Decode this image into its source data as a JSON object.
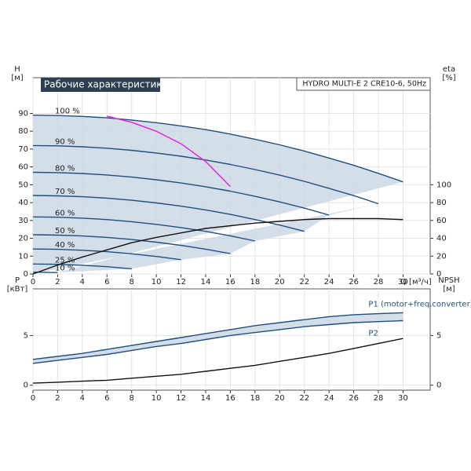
{
  "chart_data": [
    {
      "type": "line",
      "title": "Рабочие характеристики",
      "subtitle": "HYDRO MULTI-E 2 CRE10-6, 50Hz",
      "ylabel": "H",
      "ylabel_unit": "[м]",
      "y2label": "eta",
      "y2label_unit": "[%]",
      "xlabel": "Q [м³/ч]",
      "series_labels": "start",
      "grid": true,
      "xlim": [
        0,
        32.2
      ],
      "xticks": [
        0,
        2,
        4,
        6,
        8,
        10,
        12,
        14,
        16,
        18,
        20,
        22,
        24,
        26,
        28,
        30
      ],
      "ylim": [
        0,
        110
      ],
      "yticks": [
        0,
        10,
        20,
        30,
        40,
        50,
        60,
        70,
        80,
        90
      ],
      "y2lim": [
        0,
        220
      ],
      "y2ticks": [
        0,
        20,
        40,
        60,
        80,
        100
      ],
      "x": [
        0,
        2,
        4,
        6,
        8,
        10,
        12,
        14,
        16,
        18,
        20,
        22,
        24,
        26,
        28,
        30
      ],
      "series": [
        {
          "name": "100 %",
          "color": "#1f4f7f",
          "values": [
            89,
            88.8,
            88.3,
            87.5,
            86.3,
            84.8,
            83,
            80.9,
            78.4,
            75.5,
            72.4,
            68.9,
            65,
            60.9,
            56.4,
            51.6
          ]
        },
        {
          "name": "90 %",
          "color": "#1f4f7f",
          "values": [
            72,
            71.8,
            71.3,
            70.5,
            69.3,
            67.8,
            66,
            63.9,
            61.4,
            58.5,
            55.4,
            51.9,
            48,
            43.9,
            39.4,
            null
          ]
        },
        {
          "name": "80 %",
          "color": "#1f4f7f",
          "values": [
            57,
            56.8,
            56.3,
            55.5,
            54.3,
            52.8,
            51,
            48.9,
            46.4,
            43.5,
            40.4,
            36.9,
            33,
            null,
            null,
            null
          ]
        },
        {
          "name": "70 %",
          "color": "#1f4f7f",
          "values": [
            44,
            43.8,
            43.3,
            42.5,
            41.3,
            39.8,
            38,
            35.9,
            33.4,
            30.5,
            27.4,
            23.9,
            null,
            null,
            null,
            null
          ]
        },
        {
          "name": "60 %",
          "color": "#1f4f7f",
          "values": [
            32,
            31.8,
            31.3,
            30.5,
            29.3,
            27.8,
            26,
            23.9,
            21.4,
            18.5,
            null,
            null,
            null,
            null,
            null,
            null
          ]
        },
        {
          "name": "50 %",
          "color": "#1f4f7f",
          "values": [
            22,
            21.8,
            21.3,
            20.5,
            19.3,
            17.8,
            16,
            13.9,
            11.4,
            null,
            null,
            null,
            null,
            null,
            null,
            null
          ]
        },
        {
          "name": "40 %",
          "color": "#1f4f7f",
          "values": [
            14,
            13.8,
            13.3,
            12.5,
            11.3,
            9.8,
            8,
            null,
            null,
            null,
            null,
            null,
            null,
            null,
            null,
            null
          ]
        },
        {
          "name": "25 %",
          "color": "#1f4f7f",
          "values": [
            5.6,
            5.4,
            4.9,
            4.1,
            2.9,
            null,
            null,
            null,
            null,
            null,
            null,
            null,
            null,
            null,
            null,
            null
          ]
        },
        {
          "name": "10 %",
          "color": "#1f4f7f",
          "values": [
            1,
            0.8,
            null,
            null,
            null,
            null,
            null,
            null,
            null,
            null,
            null,
            null,
            null,
            null,
            null,
            null
          ]
        },
        {
          "color": "#111111",
          "axis": "y2",
          "values": [
            0,
            10,
            19,
            27,
            35,
            41,
            46,
            51,
            54,
            57,
            59,
            61,
            62,
            62,
            62,
            61
          ]
        },
        {
          "color": "#e020e0",
          "values": [
            null,
            null,
            null,
            88.5,
            85,
            80,
            73,
            63,
            49,
            null,
            null,
            null,
            null,
            null,
            null,
            null
          ]
        }
      ]
    },
    {
      "type": "line",
      "ylabel": "P",
      "ylabel_unit": "[кВт]",
      "y2label": "NPSH",
      "y2label_unit": "[м]",
      "series_labels": "end",
      "grid": true,
      "xlim": [
        0,
        32.2
      ],
      "xticks": [
        0,
        2,
        4,
        6,
        8,
        10,
        12,
        14,
        16,
        18,
        20,
        22,
        24,
        26,
        28,
        30
      ],
      "ylim": [
        -0.5,
        9.7
      ],
      "yticks": [
        0,
        5
      ],
      "y2lim": [
        -0.5,
        9.7
      ],
      "y2ticks": [
        0,
        5
      ],
      "x": [
        0,
        2,
        4,
        6,
        8,
        10,
        12,
        14,
        16,
        18,
        20,
        22,
        24,
        26,
        28,
        30
      ],
      "series": [
        {
          "name": "P1 (motor+freq.converter)",
          "color": "#1f4f7f",
          "values": [
            2.6,
            2.9,
            3.2,
            3.6,
            4.0,
            4.4,
            4.8,
            5.2,
            5.6,
            6.0,
            6.3,
            6.6,
            6.9,
            7.1,
            7.2,
            7.3
          ]
        },
        {
          "name": "P2",
          "color": "#1f4f7f",
          "values": [
            2.2,
            2.5,
            2.8,
            3.1,
            3.5,
            3.9,
            4.2,
            4.6,
            5.0,
            5.3,
            5.6,
            5.9,
            6.1,
            6.3,
            6.4,
            6.5
          ]
        },
        {
          "color": "#111111",
          "axis": "y2",
          "values": [
            0.2,
            0.3,
            0.4,
            0.5,
            0.7,
            0.9,
            1.1,
            1.4,
            1.7,
            2.0,
            2.4,
            2.8,
            3.2,
            3.7,
            4.2,
            4.7
          ]
        }
      ]
    }
  ]
}
